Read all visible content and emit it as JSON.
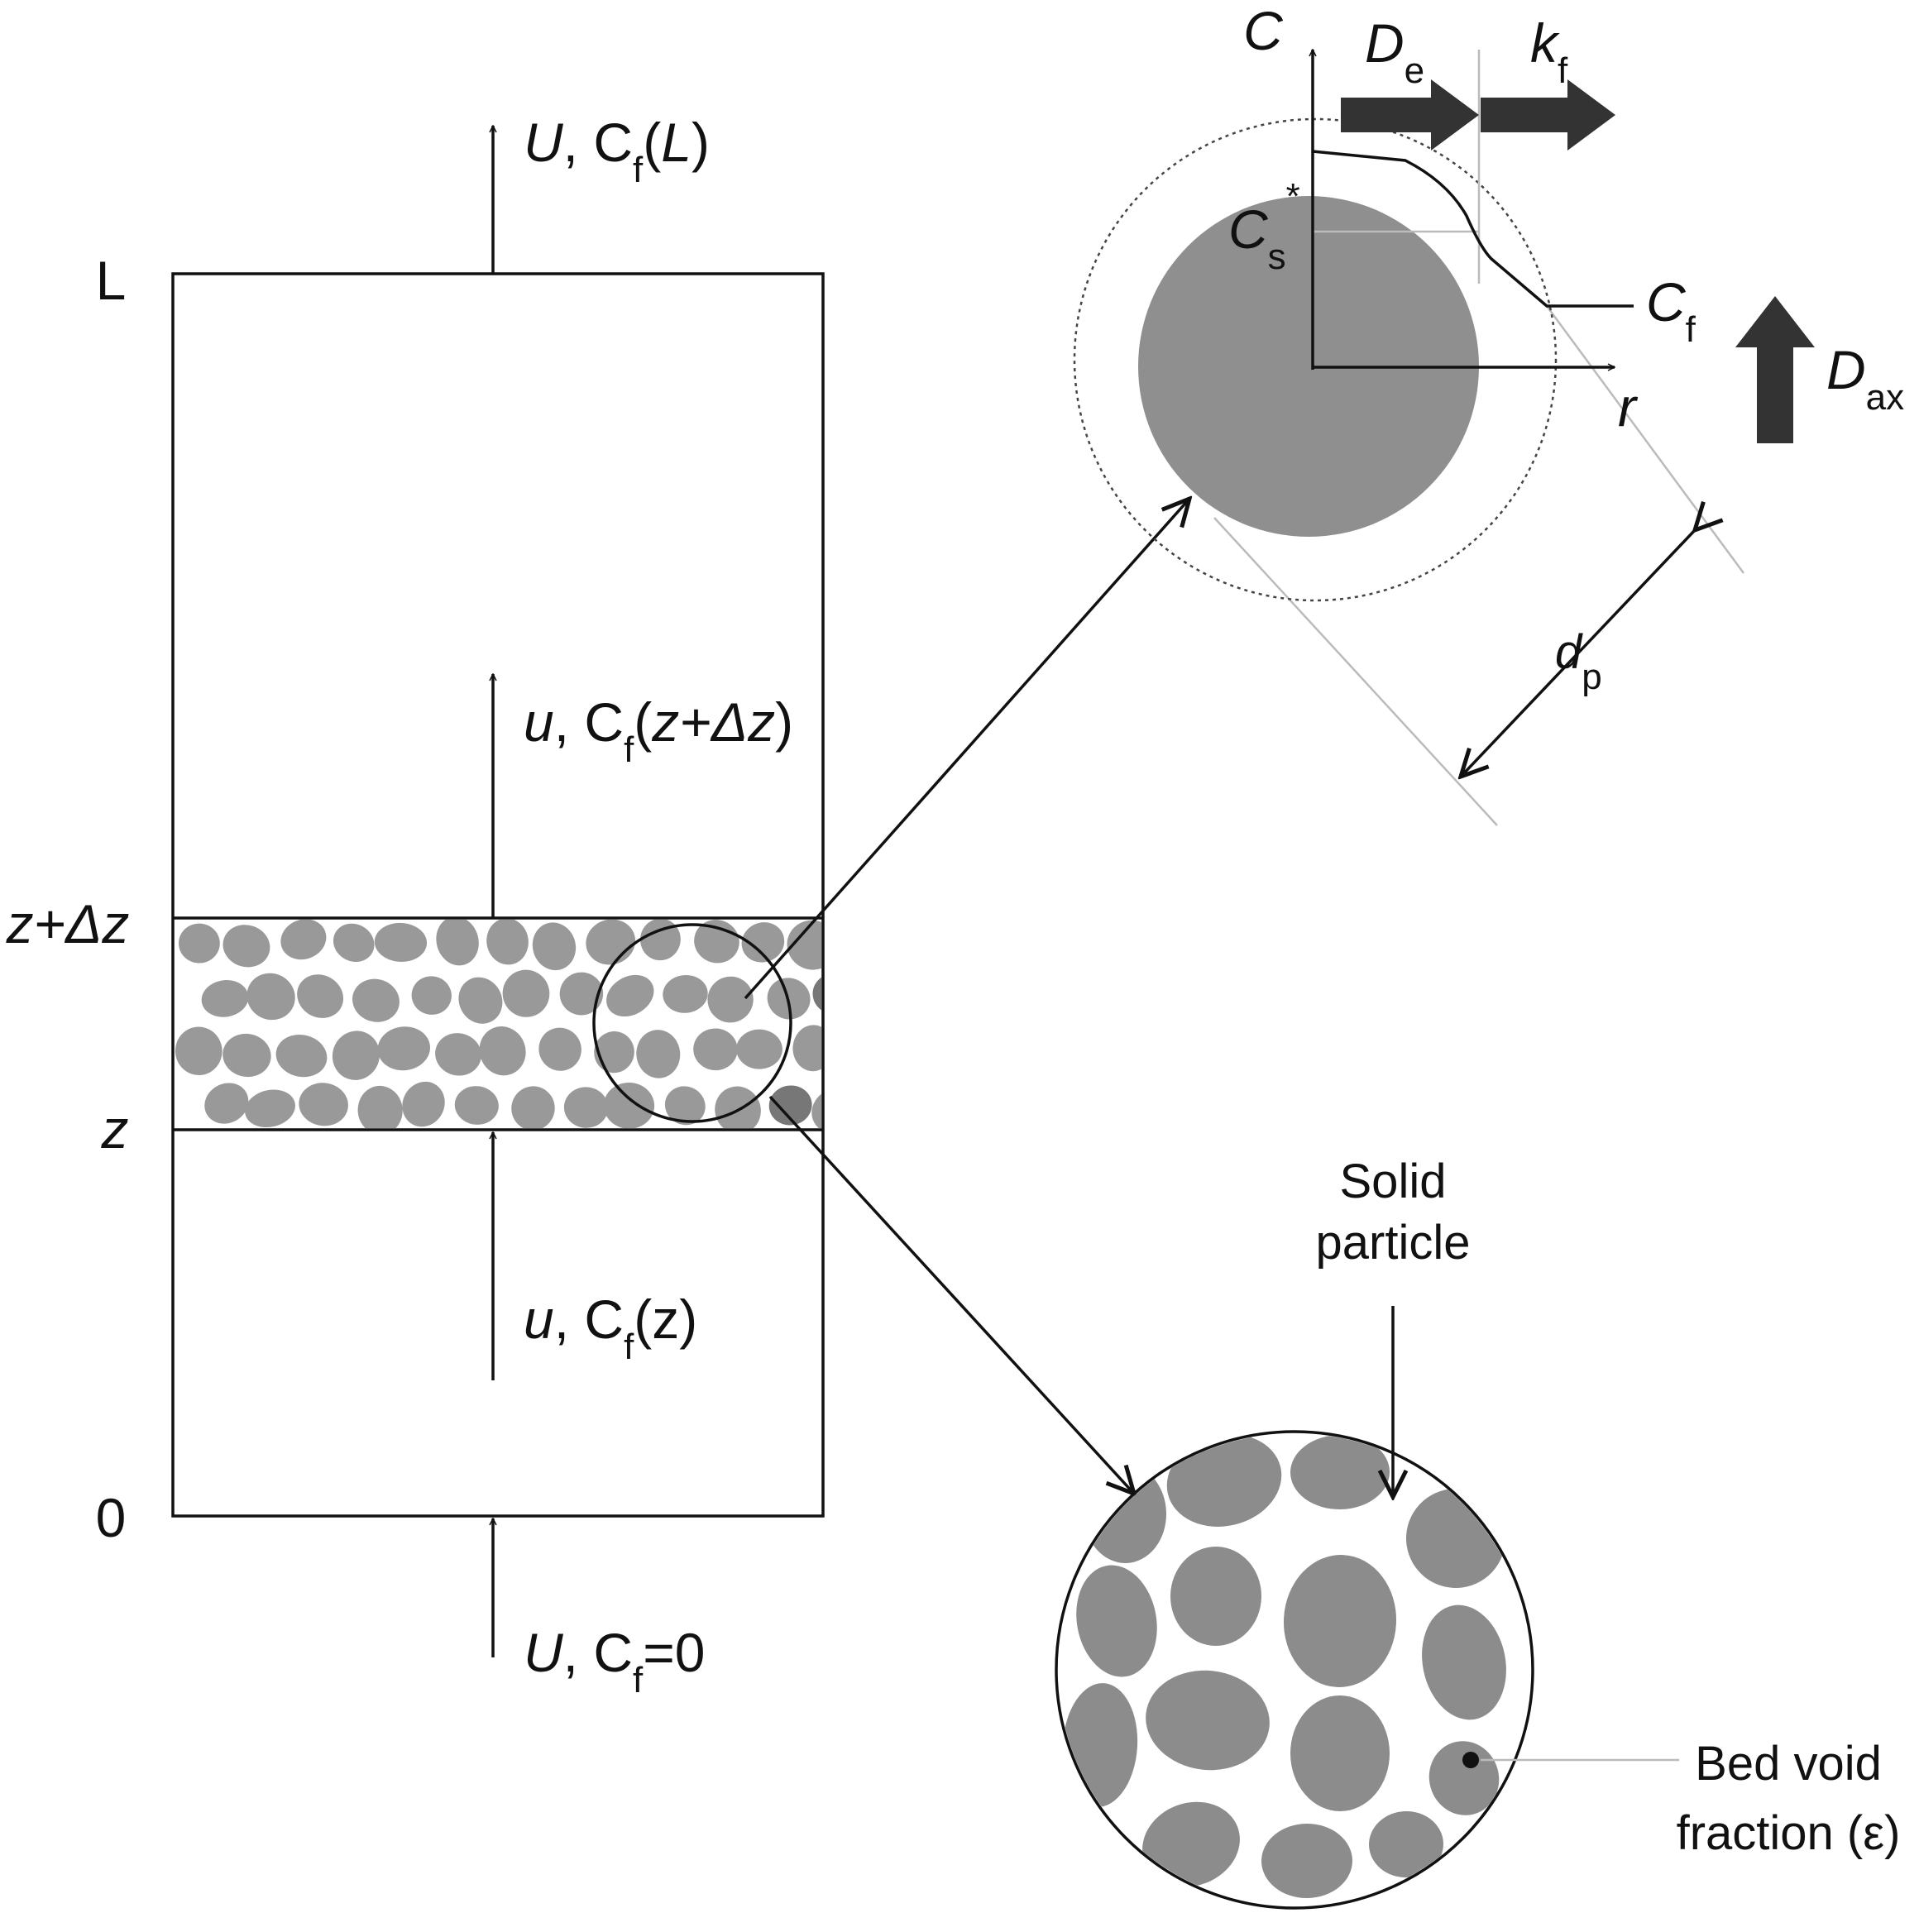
{
  "column": {
    "top_label": "L",
    "bottom_label": "0",
    "slice_top_label": "z+Δz",
    "slice_bottom_label": "z"
  },
  "flows": {
    "outlet": [
      "U",
      ", C",
      "f",
      "(",
      "L",
      ")"
    ],
    "slice_out": [
      "u",
      ", C",
      "f",
      "(",
      "z+Δz",
      ")"
    ],
    "slice_in": [
      "u",
      ", C",
      "f",
      "(z)"
    ],
    "inlet": [
      "U",
      ", C",
      "f",
      "=0"
    ]
  },
  "particle_detail": {
    "axis_c": "C",
    "axis_r": "r",
    "de": [
      "D",
      "e"
    ],
    "kf": [
      "k",
      "f"
    ],
    "cs": [
      "C",
      "s",
      "*"
    ],
    "cf": [
      "C",
      "f"
    ],
    "dax": [
      "D",
      "ax"
    ],
    "dp": [
      "d",
      "p"
    ]
  },
  "bed_detail": {
    "solid_particle": [
      "Solid",
      "particle"
    ],
    "void_fraction": [
      "Bed void",
      "fraction (ε)"
    ]
  }
}
